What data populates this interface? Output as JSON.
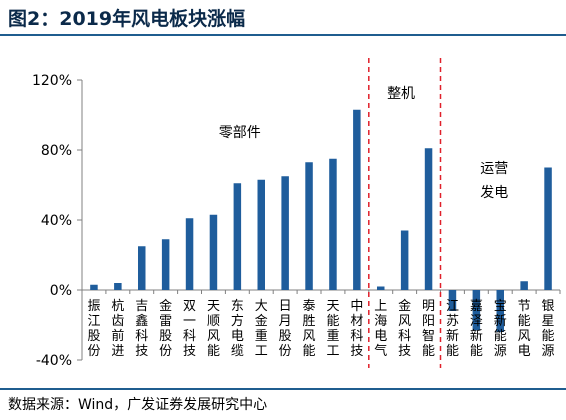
{
  "header": {
    "title": "图2：2019年风电板块涨幅"
  },
  "footer": {
    "source": "数据来源：Wind，广发证券发展研究中心"
  },
  "colors": {
    "bar": "#1f5d9c",
    "divider": "#e0202a",
    "rule": "#1f5d8f",
    "axis": "#808080"
  },
  "chart_data": {
    "type": "bar",
    "title": "",
    "xlabel": "",
    "ylabel": "",
    "ylim": [
      -0.4,
      1.2
    ],
    "yticks": [
      -0.4,
      0.0,
      0.4,
      0.8,
      1.2
    ],
    "ytick_labels": [
      "-40%",
      "0%",
      "40%",
      "80%",
      "120%"
    ],
    "categories": [
      "振江股份",
      "杭齿前进",
      "吉鑫科技",
      "金雷股份",
      "双一科技",
      "天顺风能",
      "东方电缆",
      "大金重工",
      "日月股份",
      "泰胜风能",
      "天能重工",
      "中材科技",
      "上海电气",
      "金风科技",
      "明阳智能",
      "江苏新能",
      "嘉泽新能",
      "宝新能源",
      "节能风电",
      "银星能源"
    ],
    "values": [
      0.03,
      0.04,
      0.25,
      0.29,
      0.41,
      0.43,
      0.61,
      0.63,
      0.65,
      0.73,
      0.75,
      1.03,
      0.02,
      0.34,
      0.81,
      -0.12,
      -0.23,
      -0.24,
      0.05,
      0.7
    ],
    "groups": [
      {
        "label": "零部件",
        "count": 12
      },
      {
        "label": "整机",
        "count": 3
      },
      {
        "label": "运营\n发电",
        "count": 5
      }
    ],
    "grid": false,
    "legend": "none"
  }
}
